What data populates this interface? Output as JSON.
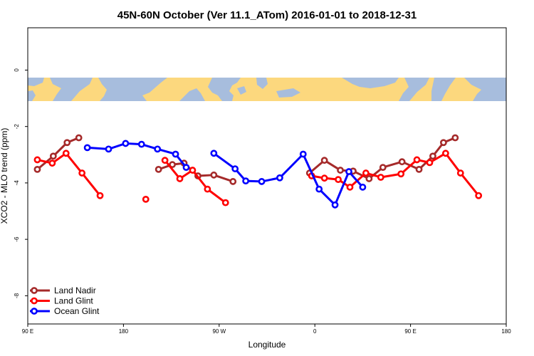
{
  "chart_data": {
    "type": "line",
    "title": "45N-60N October (Ver 11.1_ATom)   2016-01-01 to 2018-12-31",
    "xlabel": "Longitude",
    "ylabel": "XCO2 - MLO trend (ppm)",
    "xlim": [
      90,
      540
    ],
    "ylim": [
      -9,
      1.5
    ],
    "x_ticks": [
      {
        "value": 90,
        "label": "90 E"
      },
      {
        "value": 180,
        "label": "180"
      },
      {
        "value": 270,
        "label": "90 W"
      },
      {
        "value": 360,
        "label": "0"
      },
      {
        "value": 450,
        "label": "90 E"
      },
      {
        "value": 540,
        "label": "180"
      }
    ],
    "y_ticks": [
      {
        "value": 0,
        "label": "0"
      },
      {
        "value": -2,
        "label": "-2"
      },
      {
        "value": -4,
        "label": "-4"
      },
      {
        "value": -6,
        "label": "-6"
      },
      {
        "value": -8,
        "label": "-8"
      }
    ],
    "map_band": {
      "y_top": -0.2,
      "y_bottom": -1.0,
      "land_color": "#FCD87E",
      "ocean_color": "#A7BDDD"
    },
    "legend": {
      "position": "bottom-left"
    },
    "grid": false,
    "series": [
      {
        "name": "Land Nadir",
        "color": "#A52A2A",
        "segments": [
          [
            [
              99,
              -3.52
            ],
            [
              114,
              -3.05
            ],
            [
              127,
              -2.57
            ],
            [
              138,
              -2.4
            ]
          ],
          [
            [
              213,
              -3.52
            ],
            [
              226,
              -3.35
            ],
            [
              237,
              -3.3
            ],
            [
              250,
              -3.75
            ],
            [
              265,
              -3.72
            ],
            [
              283,
              -3.95
            ]
          ],
          [
            [
              355,
              -3.65
            ],
            [
              369,
              -3.2
            ],
            [
              384,
              -3.55
            ],
            [
              396,
              -3.58
            ],
            [
              411,
              -3.85
            ],
            [
              424,
              -3.45
            ],
            [
              442,
              -3.25
            ],
            [
              458,
              -3.52
            ],
            [
              471,
              -3.05
            ],
            [
              481,
              -2.57
            ],
            [
              492,
              -2.4
            ]
          ]
        ]
      },
      {
        "name": "Land Glint",
        "color": "#FF0000",
        "segments": [
          [
            [
              99,
              -3.18
            ],
            [
              113,
              -3.3
            ],
            [
              126,
              -2.95
            ],
            [
              141,
              -3.65
            ],
            [
              158,
              -4.45
            ]
          ],
          [
            [
              201,
              -4.58
            ]
          ],
          [
            [
              219,
              -3.2
            ],
            [
              233,
              -3.85
            ],
            [
              245,
              -3.55
            ],
            [
              259,
              -4.22
            ],
            [
              276,
              -4.7
            ]
          ],
          [
            [
              357,
              -3.75
            ],
            [
              369,
              -3.83
            ],
            [
              382,
              -3.88
            ],
            [
              393,
              -4.15
            ],
            [
              408,
              -3.65
            ],
            [
              422,
              -3.8
            ],
            [
              441,
              -3.68
            ],
            [
              456,
              -3.18
            ],
            [
              468,
              -3.28
            ],
            [
              483,
              -2.95
            ],
            [
              497,
              -3.65
            ],
            [
              514,
              -4.45
            ]
          ]
        ]
      },
      {
        "name": "Ocean Glint",
        "color": "#0000FF",
        "segments": [
          [
            [
              146,
              -2.75
            ],
            [
              166,
              -2.8
            ],
            [
              182,
              -2.6
            ],
            [
              197,
              -2.63
            ],
            [
              212,
              -2.8
            ],
            [
              229,
              -2.98
            ],
            [
              239,
              -3.45
            ]
          ],
          [
            [
              265,
              -2.95
            ],
            [
              285,
              -3.5
            ],
            [
              295,
              -3.93
            ],
            [
              310,
              -3.95
            ],
            [
              327,
              -3.82
            ],
            [
              349,
              -2.98
            ],
            [
              364,
              -4.22
            ],
            [
              379,
              -4.78
            ],
            [
              392,
              -3.6
            ],
            [
              405,
              -4.15
            ]
          ]
        ]
      }
    ]
  }
}
